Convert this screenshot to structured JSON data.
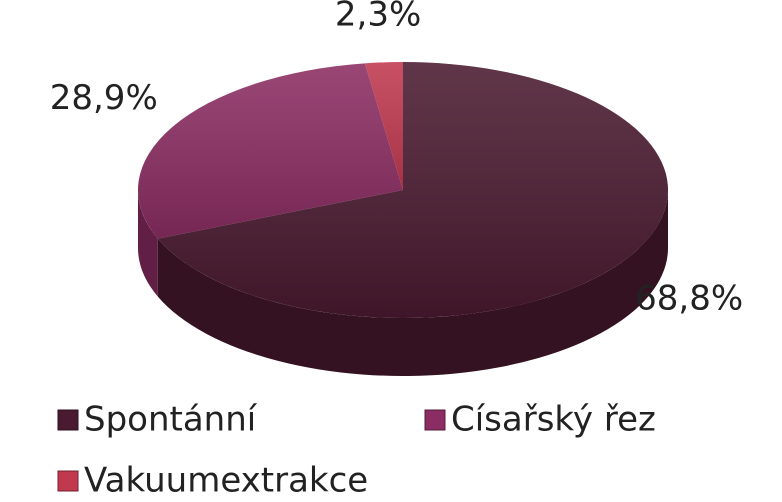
{
  "chart_data": {
    "type": "pie",
    "categories": [
      "Spontánní",
      "Císařský řez",
      "Vakuumextrakce"
    ],
    "values": [
      68.8,
      28.9,
      2.3
    ],
    "value_labels": [
      "68,8%",
      "28,9%",
      "2,3%"
    ],
    "colors": [
      "#4a1a30",
      "#8b2d62",
      "#c0394f"
    ],
    "legend": "bottom"
  }
}
